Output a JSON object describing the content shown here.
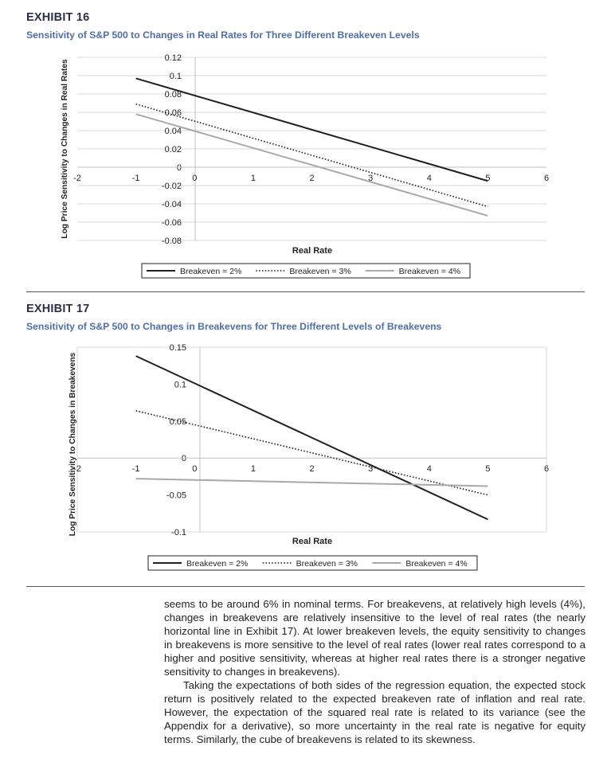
{
  "exhibits": [
    {
      "label": "EXHIBIT 16",
      "title": "Sensitivity of S&P 500 to Changes in Real Rates for Three Different Breakeven Levels"
    },
    {
      "label": "EXHIBIT 17",
      "title": "Sensitivity of S&P 500 to Changes in Breakevens for Three Different Levels of Breakevens"
    }
  ],
  "colors": {
    "be2": "#231f20",
    "be3": "#231f20",
    "be4": "#a7a9ac",
    "grid": "#d9d9d9",
    "title": "#4e6fae",
    "label": "#2b2e4a"
  },
  "chart_data": [
    {
      "type": "line",
      "title": "Sensitivity of S&P 500 to Changes in Real Rates for Three Different Breakeven Levels",
      "xlabel": "Real Rate",
      "ylabel": "Log Price Sensitivity to Changes in Real Rates",
      "xlim": [
        -2,
        6
      ],
      "ylim": [
        -0.08,
        0.12
      ],
      "xticks": [
        "-2",
        "-1",
        "0",
        "1",
        "2",
        "3",
        "4",
        "5",
        "6"
      ],
      "yticks": [
        "0.12",
        "0.1",
        "0.08",
        "0.06",
        "0.04",
        "0.02",
        "0",
        "-0.02",
        "-0.04",
        "-0.06",
        "-0.08"
      ],
      "grid": "horizontal",
      "legend_position": "bottom",
      "series": [
        {
          "name": "Breakeven = 2%",
          "style": "solid",
          "x": [
            -1,
            5
          ],
          "y": [
            0.097,
            -0.015
          ]
        },
        {
          "name": "Breakeven = 3%",
          "style": "dotted",
          "x": [
            -1,
            5
          ],
          "y": [
            0.069,
            -0.043
          ]
        },
        {
          "name": "Breakeven = 4%",
          "style": "solid-gray",
          "x": [
            -1,
            5
          ],
          "y": [
            0.058,
            -0.053
          ]
        }
      ]
    },
    {
      "type": "line",
      "title": "Sensitivity of S&P 500 to Changes in Breakevens for Three Different Levels of Breakevens",
      "xlabel": "Real Rate",
      "ylabel": "Log Price Sensitivity to Changes in Breakevens",
      "xlim": [
        -2,
        6
      ],
      "ylim": [
        -0.1,
        0.15
      ],
      "xticks": [
        "-2",
        "-1",
        "0",
        "1",
        "2",
        "3",
        "4",
        "5",
        "6"
      ],
      "yticks": [
        "0.15",
        "0.1",
        "0.05",
        "0",
        "-0.05",
        "-0.1"
      ],
      "grid": "none",
      "legend_position": "bottom",
      "series": [
        {
          "name": "Breakeven = 2%",
          "style": "solid",
          "x": [
            -1,
            5
          ],
          "y": [
            0.138,
            -0.083
          ]
        },
        {
          "name": "Breakeven = 3%",
          "style": "dotted",
          "x": [
            -1,
            5
          ],
          "y": [
            0.064,
            -0.05
          ]
        },
        {
          "name": "Breakeven = 4%",
          "style": "solid-gray",
          "x": [
            -1,
            5
          ],
          "y": [
            -0.028,
            -0.038
          ]
        }
      ]
    }
  ],
  "body_text": {
    "paragraph1": "seems to be around 6% in nominal terms. For breakevens, at relatively high levels (4%), changes in breakevens are relatively insensitive to the level of real rates (the nearly horizontal line in Exhibit 17). At lower breakeven levels, the equity sensitivity to changes in breakevens is more sensitive to the level of real rates (lower real rates correspond to a higher and positive sensitivity, whereas at higher real rates there is a stronger negative sensitivity to changes in breakevens).",
    "paragraph2": "Taking the expectations of both sides of the regression equation, the expected stock return is positively related to the expected breakeven rate of inflation and real rate. However, the expectation of the squared real rate is related to its variance (see the Appendix for a derivative), so more uncertainty in the real rate is negative for equity terms. Similarly, the cube of breakevens is related to its skewness."
  }
}
